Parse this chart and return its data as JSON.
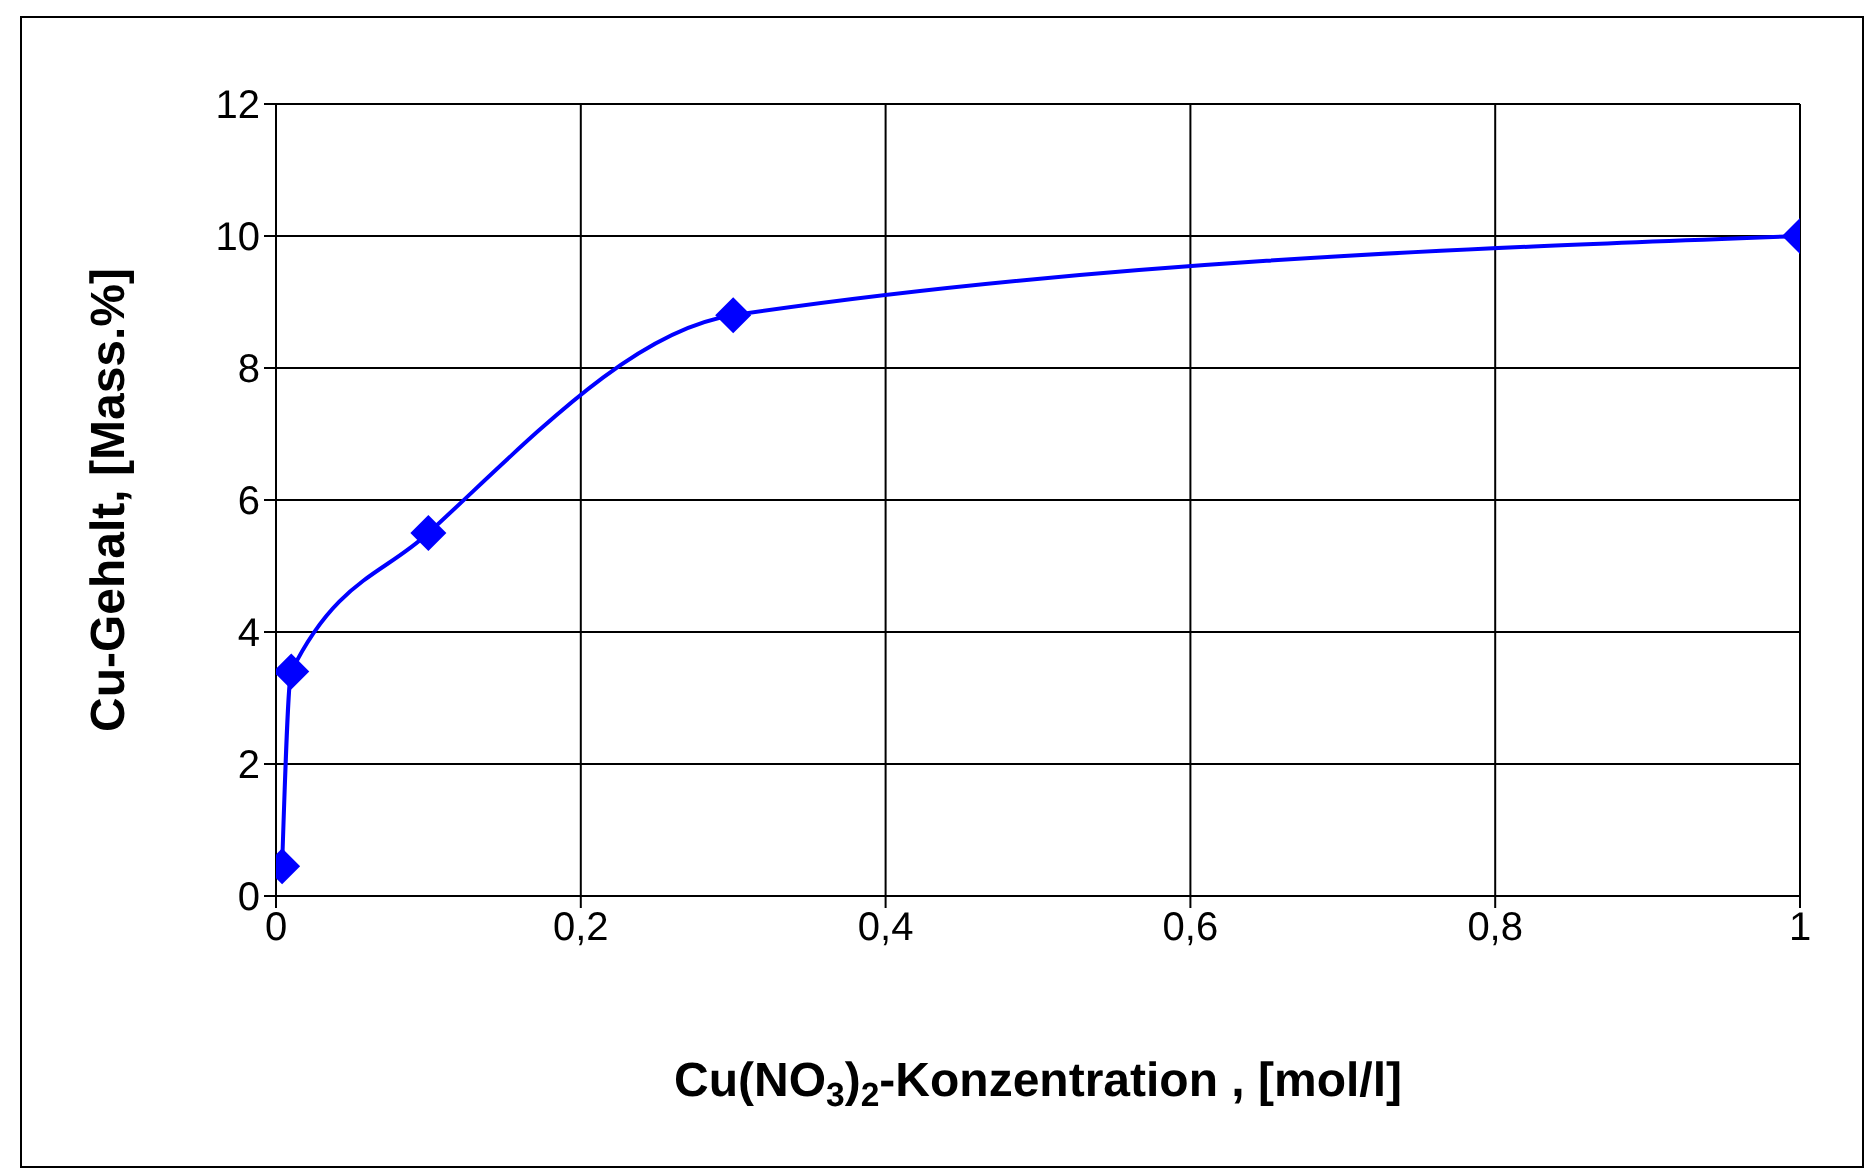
{
  "chart_data": {
    "type": "line",
    "xlabel": "Cu(NO$_{3}$)$_{2}$-Konzentration , [mol/l]",
    "ylabel": "Cu-Gehalt, [Mass.%]",
    "x": [
      0.004,
      0.01,
      0.1,
      0.3,
      1
    ],
    "series": [
      {
        "color": "#0000ff",
        "values": [
          0.45,
          3.4,
          5.5,
          8.8,
          10
        ]
      }
    ],
    "xlim": [
      0,
      1
    ],
    "xticks": [
      0,
      {
        "value": 0.2,
        "label": "0,2"
      },
      {
        "value": 0.4,
        "label": "0,4"
      },
      {
        "value": 0.6,
        "label": "0,6"
      },
      {
        "value": 0.8,
        "label": "0,8"
      },
      1
    ],
    "ylim": [
      0,
      12
    ],
    "yticks": [
      0,
      2,
      4,
      6,
      8,
      10,
      12
    ],
    "grid": true,
    "marker": "diamond",
    "line_style": "solid",
    "legend": false
  }
}
